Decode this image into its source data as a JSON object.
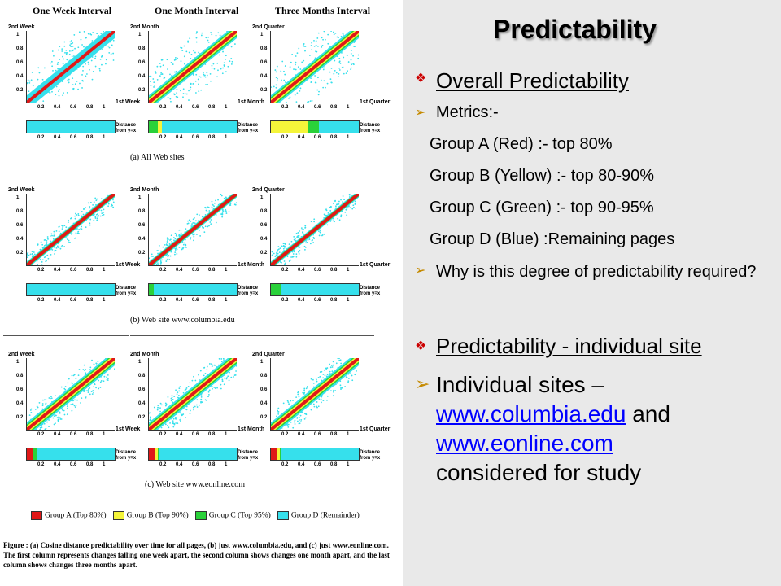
{
  "figure": {
    "column_titles": [
      "One Week Interval",
      "One Month Interval",
      "Three Months Interval"
    ],
    "rows": [
      {
        "caption": "(a) All Web sites",
        "panels": [
          {
            "ylabel": "2nd Week",
            "xlabel": "1st Week",
            "bar": [
              [
                "#36e0ec",
                1.0
              ]
            ]
          },
          {
            "ylabel": "2nd Month",
            "xlabel": "1st Month",
            "bar": [
              [
                "#2ad13a",
                0.1
              ],
              [
                "#f5f53a",
                0.05
              ],
              [
                "#36e0ec",
                0.85
              ]
            ]
          },
          {
            "ylabel": "2nd Quarter",
            "xlabel": "1st Quarter",
            "bar": [
              [
                "#f5f53a",
                0.43
              ],
              [
                "#2ad13a",
                0.12
              ],
              [
                "#36e0ec",
                0.45
              ]
            ]
          }
        ]
      },
      {
        "caption": "(b) Web site www.columbia.edu",
        "panels": [
          {
            "ylabel": "2nd Week",
            "xlabel": "1st Week",
            "bar": [
              [
                "#36e0ec",
                1.0
              ]
            ]
          },
          {
            "ylabel": "2nd Month",
            "xlabel": "1st Month",
            "bar": [
              [
                "#2ad13a",
                0.06
              ],
              [
                "#36e0ec",
                0.94
              ]
            ]
          },
          {
            "ylabel": "2nd Quarter",
            "xlabel": "1st Quarter",
            "bar": [
              [
                "#2ad13a",
                0.12
              ],
              [
                "#36e0ec",
                0.88
              ]
            ]
          }
        ]
      },
      {
        "caption": "(c) Web site www.eonline.com",
        "panels": [
          {
            "ylabel": "2nd Week",
            "xlabel": "1st Week",
            "bar": [
              [
                "#e01818",
                0.07
              ],
              [
                "#2ad13a",
                0.05
              ],
              [
                "#36e0ec",
                0.88
              ]
            ]
          },
          {
            "ylabel": "2nd Month",
            "xlabel": "1st Month",
            "bar": [
              [
                "#e01818",
                0.07
              ],
              [
                "#f5f53a",
                0.03
              ],
              [
                "#2ad13a",
                0.02
              ],
              [
                "#36e0ec",
                0.88
              ]
            ]
          },
          {
            "ylabel": "2nd Quarter",
            "xlabel": "1st Quarter",
            "bar": [
              [
                "#e01818",
                0.07
              ],
              [
                "#f5f53a",
                0.03
              ],
              [
                "#2ad13a",
                0.02
              ],
              [
                "#36e0ec",
                0.88
              ]
            ]
          }
        ]
      }
    ],
    "yticks": [
      "1",
      "0.8",
      "0.6",
      "0.4",
      "0.2"
    ],
    "xticks": [
      "0.2",
      "0.4",
      "0.6",
      "0.8",
      "1"
    ],
    "distance_label_1": "Distance",
    "distance_label_2": "from y=x",
    "legend": [
      {
        "label": "Group A (Top 80%)",
        "color": "#e01818"
      },
      {
        "label": "Group B (Top 90%)",
        "color": "#f5f53a"
      },
      {
        "label": "Group C (Top 95%)",
        "color": "#2ad13a"
      },
      {
        "label": "Group D (Remainder)",
        "color": "#36e0ec"
      }
    ],
    "caption": "Figure : (a) Cosine distance predictability over time for all pages, (b) just www.columbia.edu, and (c) just www.eonline.com. The first column represents changes falling one week apart, the second column shows changes one month apart, and the last column shows changes three months apart."
  },
  "slide": {
    "title": "Predictability",
    "bullet1": "Overall Predictability",
    "metrics": "Metrics:-",
    "group_a": "Group A (Red) :- top 80%",
    "group_b": "Group B (Yellow) :- top 80-90%",
    "group_c": "Group C (Green) :- top 90-95%",
    "group_d": "Group D (Blue) :Remaining pages",
    "why": "Why is this degree of predictability required?",
    "bullet2": "Predictability - individual site",
    "individual_prefix": "Individual sites –",
    "link1": "www.columbia.edu",
    "and": "and",
    "link2": "www.eonline.com",
    "considered": "considered for study"
  }
}
